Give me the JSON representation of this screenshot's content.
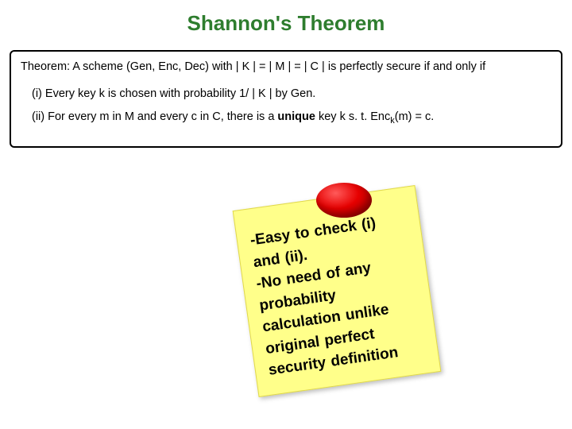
{
  "title": {
    "text": "Shannon's Theorem",
    "color": "#2e7d2e"
  },
  "theorem": {
    "statement": "Theorem: A scheme (Gen, Enc, Dec) with | K | = | M | = | C |  is perfectly secure if and only if",
    "item_i": "(i) Every key k is chosen with probability 1/ | K | by Gen.",
    "item_ii_prefix": "(ii) For every m in M  and every c in C,  there is a ",
    "item_ii_unique": "unique",
    "item_ii_mid": " key k s. t.  Enc",
    "item_ii_sub": "k",
    "item_ii_suffix": "(m) = c."
  },
  "sticky": {
    "line1": "-Easy to check (i)",
    "line2": "and (ii).",
    "line3": "-No need of any",
    "line4": "probability",
    "line5": "calculation unlike",
    "line6": "original perfect",
    "line7": "security definition",
    "background": "#ffff8a",
    "pin_color": "#e60000"
  }
}
